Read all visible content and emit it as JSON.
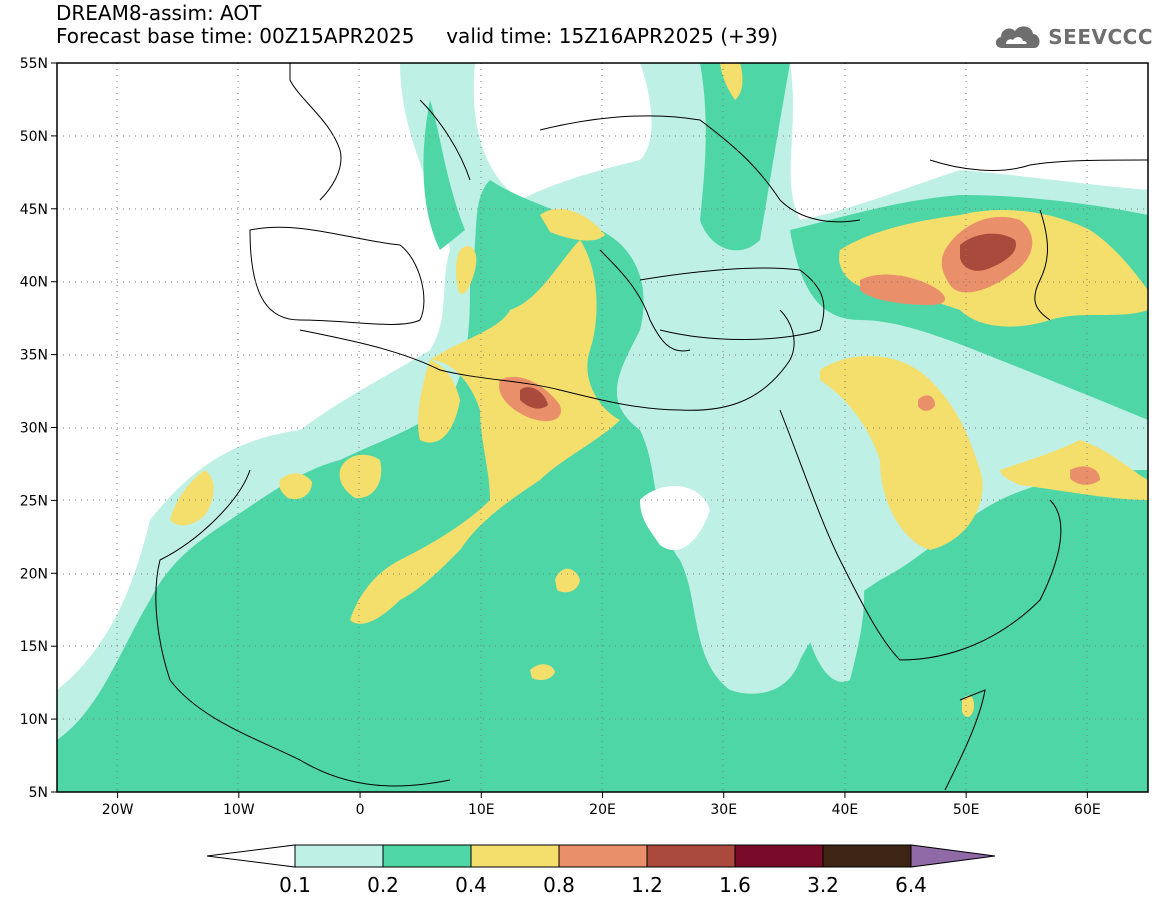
{
  "header": {
    "line1": "DREAM8-assim: AOT",
    "line2": "Forecast base time: 00Z15APR2025     valid time: 15Z16APR2025 (+39)"
  },
  "logo": {
    "text": "SEEVCCC",
    "icon": "cloud-icon"
  },
  "map": {
    "lon_range": [
      -25,
      65
    ],
    "lat_range": [
      5,
      55
    ],
    "lat_labels": [
      "55N",
      "50N",
      "45N",
      "40N",
      "35N",
      "30N",
      "25N",
      "20N",
      "15N",
      "10N",
      "5N"
    ],
    "lon_labels": [
      "20W",
      "10W",
      "0",
      "10E",
      "20E",
      "30E",
      "40E",
      "50E",
      "60E"
    ],
    "grid": "dotted"
  },
  "colorbar": {
    "levels": [
      "0.1",
      "0.2",
      "0.4",
      "0.8",
      "1.2",
      "1.6",
      "3.2",
      "6.4"
    ],
    "colors": [
      "#ffffff",
      "#bff0e6",
      "#4fd6a6",
      "#f4de6c",
      "#e9906a",
      "#aa4a3c",
      "#7a0a2a",
      "#3d2415",
      "#8f6aa6"
    ]
  }
}
